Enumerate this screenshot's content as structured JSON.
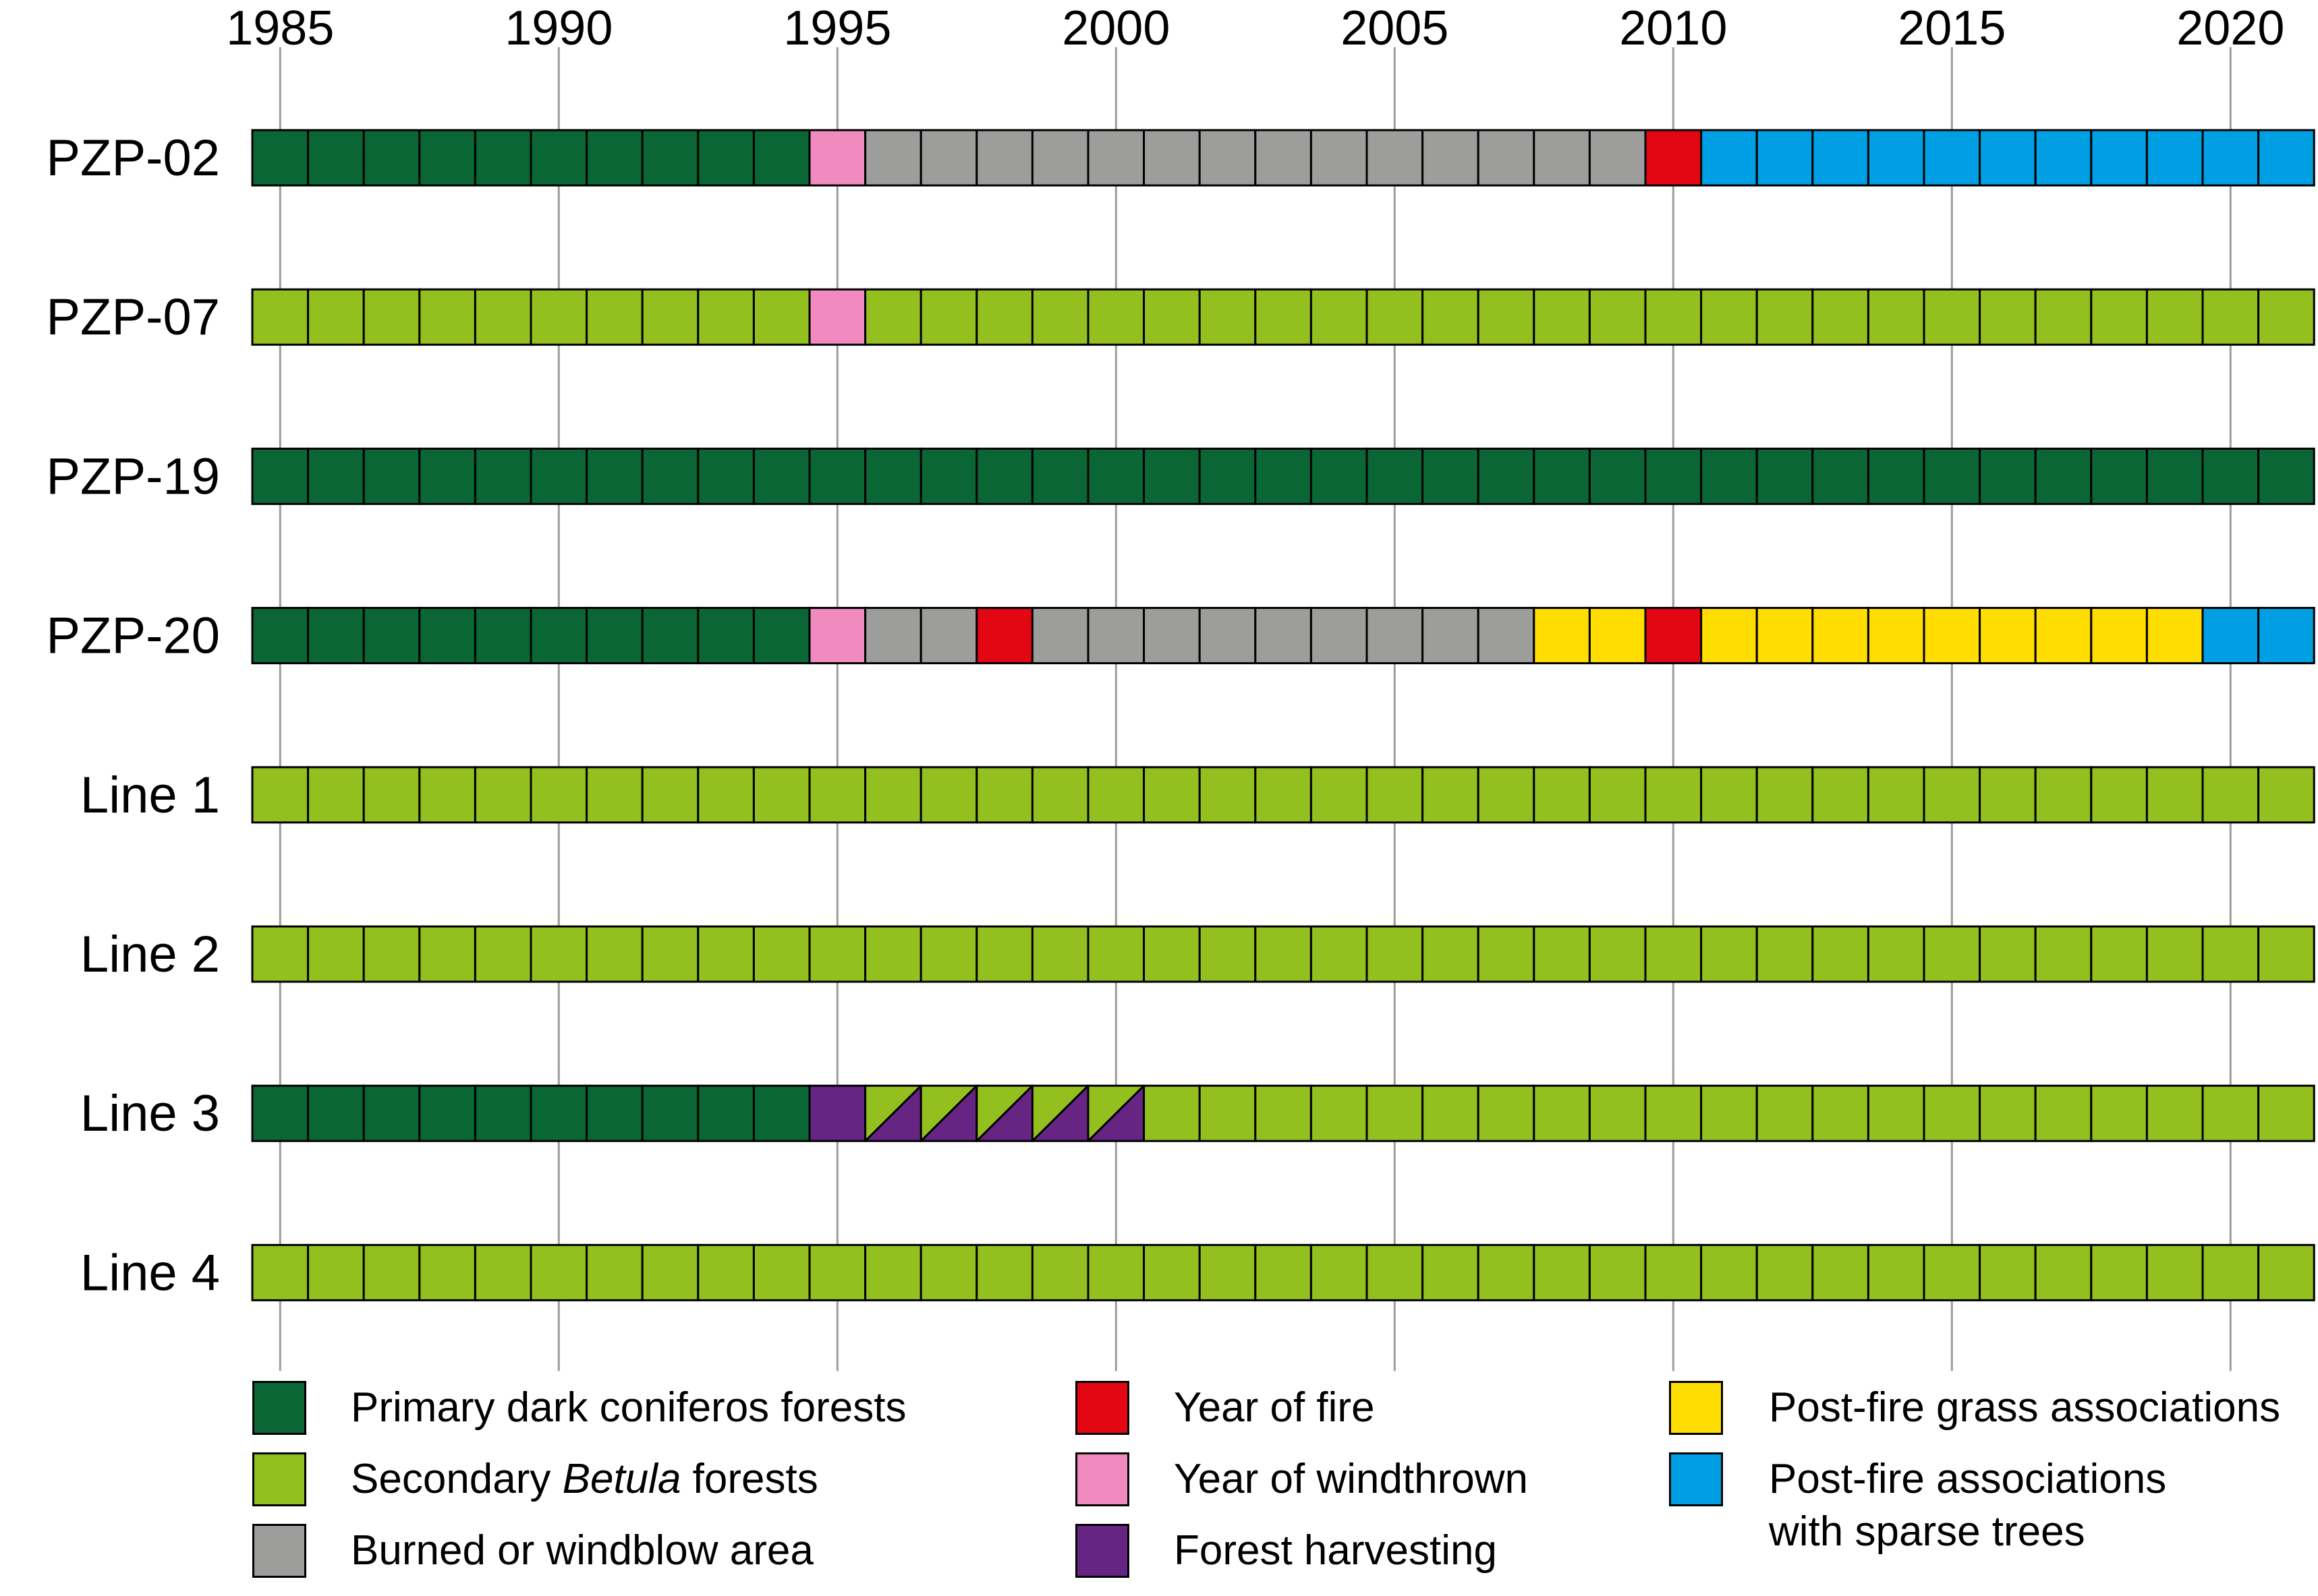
{
  "chart_data": {
    "type": "timeline",
    "x_range": [
      1985,
      2021
    ],
    "x_ticks": [
      "1985",
      "1990",
      "1995",
      "2000",
      "2005",
      "2010",
      "2015",
      "2020"
    ],
    "categories_colors": {
      "primary": "#0a6634",
      "secondary": "#93c01f",
      "burned": "#9d9d9c",
      "fire": "#e30613",
      "windthrown": "#f18bbf",
      "harvest": "#662483",
      "grass": "#ffdd00",
      "sparse": "#009fe3"
    },
    "rows": [
      {
        "label": "PZP-02",
        "segments": [
          {
            "start": 1985,
            "end": 1994,
            "cat": "primary"
          },
          {
            "start": 1995,
            "end": 1995,
            "cat": "windthrown"
          },
          {
            "start": 1996,
            "end": 2009,
            "cat": "burned"
          },
          {
            "start": 2010,
            "end": 2010,
            "cat": "fire"
          },
          {
            "start": 2011,
            "end": 2021,
            "cat": "sparse"
          }
        ]
      },
      {
        "label": "PZP-07",
        "segments": [
          {
            "start": 1985,
            "end": 1994,
            "cat": "secondary"
          },
          {
            "start": 1995,
            "end": 1995,
            "cat": "windthrown"
          },
          {
            "start": 1996,
            "end": 2021,
            "cat": "secondary"
          }
        ]
      },
      {
        "label": "PZP-19",
        "segments": [
          {
            "start": 1985,
            "end": 2021,
            "cat": "primary"
          }
        ]
      },
      {
        "label": "PZP-20",
        "segments": [
          {
            "start": 1985,
            "end": 1994,
            "cat": "primary"
          },
          {
            "start": 1995,
            "end": 1995,
            "cat": "windthrown"
          },
          {
            "start": 1996,
            "end": 1997,
            "cat": "burned"
          },
          {
            "start": 1998,
            "end": 1998,
            "cat": "fire"
          },
          {
            "start": 1999,
            "end": 2007,
            "cat": "burned"
          },
          {
            "start": 2008,
            "end": 2009,
            "cat": "grass"
          },
          {
            "start": 2010,
            "end": 2010,
            "cat": "fire"
          },
          {
            "start": 2011,
            "end": 2019,
            "cat": "grass"
          },
          {
            "start": 2020,
            "end": 2021,
            "cat": "sparse"
          }
        ]
      },
      {
        "label": "Line 1",
        "segments": [
          {
            "start": 1985,
            "end": 2021,
            "cat": "secondary"
          }
        ]
      },
      {
        "label": "Line 2",
        "segments": [
          {
            "start": 1985,
            "end": 2021,
            "cat": "secondary"
          }
        ]
      },
      {
        "label": "Line 3",
        "segments": [
          {
            "start": 1985,
            "end": 1994,
            "cat": "primary"
          },
          {
            "start": 1995,
            "end": 1995,
            "cat": "harvest"
          },
          {
            "start": 1996,
            "end": 2000,
            "cat": "harvest_secondary"
          },
          {
            "start": 2001,
            "end": 2021,
            "cat": "secondary"
          }
        ]
      },
      {
        "label": "Line 4",
        "segments": [
          {
            "start": 1985,
            "end": 2021,
            "cat": "secondary"
          }
        ]
      }
    ],
    "legend": [
      {
        "cat": "primary",
        "text_before": "Primary dark coniferos forests",
        "italic": "",
        "text_after": "",
        "text_line2": ""
      },
      {
        "cat": "secondary",
        "text_before": "Secondary ",
        "italic": "Betula",
        "text_after": " forests",
        "text_line2": ""
      },
      {
        "cat": "burned",
        "text_before": "Burned or windblow area",
        "italic": "",
        "text_after": "",
        "text_line2": ""
      },
      {
        "cat": "fire",
        "text_before": "Year of fire",
        "italic": "",
        "text_after": "",
        "text_line2": ""
      },
      {
        "cat": "windthrown",
        "text_before": "Year of windthrown",
        "italic": "",
        "text_after": "",
        "text_line2": ""
      },
      {
        "cat": "harvest",
        "text_before": "Forest harvesting",
        "italic": "",
        "text_after": "",
        "text_line2": ""
      },
      {
        "cat": "grass",
        "text_before": "Post-fire grass associations",
        "italic": "",
        "text_after": "",
        "text_line2": ""
      },
      {
        "cat": "sparse",
        "text_before": "Post-fire associations",
        "italic": "",
        "text_after": "",
        "text_line2": "with sparse trees"
      }
    ]
  }
}
